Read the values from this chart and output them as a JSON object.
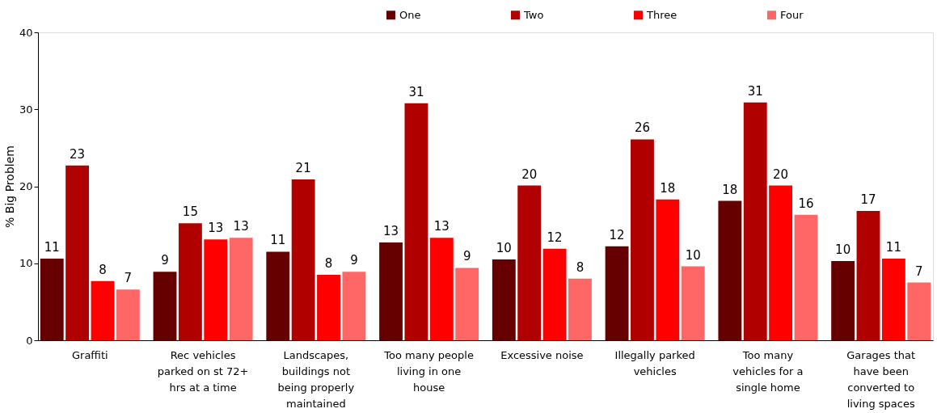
{
  "chart_data": {
    "type": "bar",
    "ylabel": "% Big Problem",
    "categories": [
      "Graffiti",
      "Rec vehicles parked on st 72+ hrs at a time",
      "Landscapes, buildings not being properly maintained",
      "Too many people living in one house",
      "Excessive noise",
      "Illegally parked vehicles",
      "Too many vehicles for a single home",
      "Garages that have been converted to living spaces"
    ],
    "series": [
      {
        "name": "One",
        "color": "#660000",
        "values": [
          10.6,
          8.9,
          11.5,
          12.7,
          10.5,
          12.2,
          18.1,
          10.3
        ],
        "value_labels": [
          "11",
          "9",
          "11",
          "13",
          "10",
          "12",
          "18",
          "10"
        ]
      },
      {
        "name": "Two",
        "color": "#b00000",
        "values": [
          22.7,
          15.2,
          20.9,
          30.8,
          20.1,
          26.1,
          30.9,
          16.8
        ],
        "value_labels": [
          "23",
          "15",
          "21",
          "31",
          "20",
          "26",
          "31",
          "17"
        ]
      },
      {
        "name": "Three",
        "color": "#ff0000",
        "values": [
          7.7,
          13.1,
          8.5,
          13.3,
          11.9,
          18.3,
          20.1,
          10.6
        ],
        "value_labels": [
          "8",
          "13",
          "8",
          "13",
          "12",
          "18",
          "20",
          "11"
        ]
      },
      {
        "name": "Four",
        "color": "#ff6666",
        "values": [
          6.6,
          13.3,
          8.9,
          9.4,
          8.0,
          9.6,
          16.3,
          7.5
        ],
        "value_labels": [
          "7",
          "13",
          "9",
          "9",
          "8",
          "10",
          "16",
          "7"
        ]
      }
    ],
    "ylim": [
      0,
      40
    ],
    "yticks": [
      0,
      10,
      20,
      30,
      40
    ],
    "grid": false,
    "legend": "top right"
  }
}
